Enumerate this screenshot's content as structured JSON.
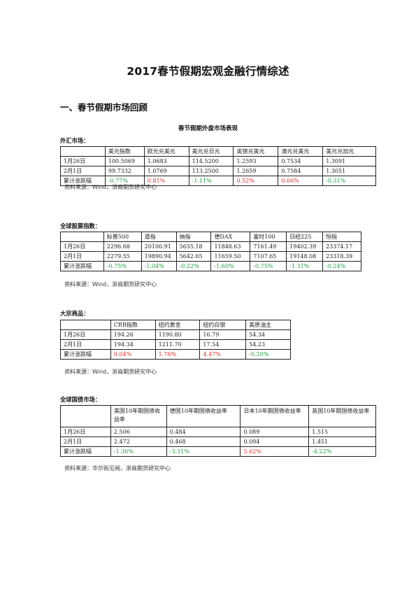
{
  "doc": {
    "title": "2017春节假期宏观金融行情综述",
    "section1": "一、春节假期市场回顾",
    "table_caption": "春节假期外盘市场表现"
  },
  "colors": {
    "up": "#e0302b",
    "down": "#1ea043"
  },
  "fx": {
    "label": "外汇市场：",
    "headers": [
      "",
      "美元指数",
      "欧元兑美元",
      "美元兑日元",
      "英镑兑美元",
      "澳元兑美元",
      "美元兑加元"
    ],
    "rows": [
      [
        "1月26日",
        "100.5069",
        "1.0683",
        "114.5200",
        "1.2593",
        "0.7534",
        "1.3091"
      ],
      [
        "2月1日",
        "99.7332",
        "1.0769",
        "113.2500",
        "1.2659",
        "0.7584",
        "1.3051"
      ],
      [
        "累计涨跌幅",
        "-0.77%",
        "0.81%",
        "-1.11%",
        "0.52%",
        "0.66%",
        "-0.31%"
      ]
    ],
    "source": "资料来源：Wind，浙商期货研究中心"
  },
  "stocks": {
    "label": "全球股票指数：",
    "headers": [
      "",
      "标普500",
      "道指",
      "纳指",
      "德DAX",
      "富时100",
      "日经225",
      "恒指"
    ],
    "rows": [
      [
        "1月26日",
        "2296.68",
        "20100.91",
        "5655.18",
        "11848.63",
        "7161.49",
        "19402.39",
        "23374.17"
      ],
      [
        "2月1日",
        "2279.55",
        "19890.94",
        "5642.65",
        "11659.50",
        "7107.65",
        "19148.08",
        "23318.39"
      ],
      [
        "累计涨跌幅",
        "-0.75%",
        "-1.04%",
        "-0.22%",
        "-1.60%",
        "-0.75%",
        "-1.31%",
        "-0.24%"
      ]
    ],
    "source": "资料来源：Wind，浙商期货研究中心"
  },
  "commodities": {
    "label": "大宗商品：",
    "headers": [
      "",
      "CRB指数",
      "纽约黄金",
      "纽约白银",
      "美原油主"
    ],
    "rows": [
      [
        "1月26日",
        "194.26",
        "1190.80",
        "16.79",
        "54.34"
      ],
      [
        "2月1日",
        "194.34",
        "1211.70",
        "17.54",
        "54.23"
      ],
      [
        "累计涨跌幅",
        "0.04%",
        "1.76%",
        "4.47%",
        "-0.20%"
      ]
    ],
    "source": "资料来源：Wind，浙商期货研究中心"
  },
  "bonds": {
    "label": "全球国债市场：",
    "headers": [
      "",
      "美国10年期国债收益率",
      "德国10年期国债收益率",
      "日本10年期国债收益率",
      "英国10年期国债收益率"
    ],
    "rows": [
      [
        "1月26日",
        "2.506",
        "0.484",
        "0.089",
        "1.515"
      ],
      [
        "2月1日",
        "2.472",
        "0.468",
        "0.094",
        "1.451"
      ],
      [
        "累计涨跌幅",
        "-1.36%",
        "-3.31%",
        "5.62%",
        "-4.22%"
      ]
    ],
    "source": "资料来源：华尔街见闻，浙商期货研究中心"
  }
}
